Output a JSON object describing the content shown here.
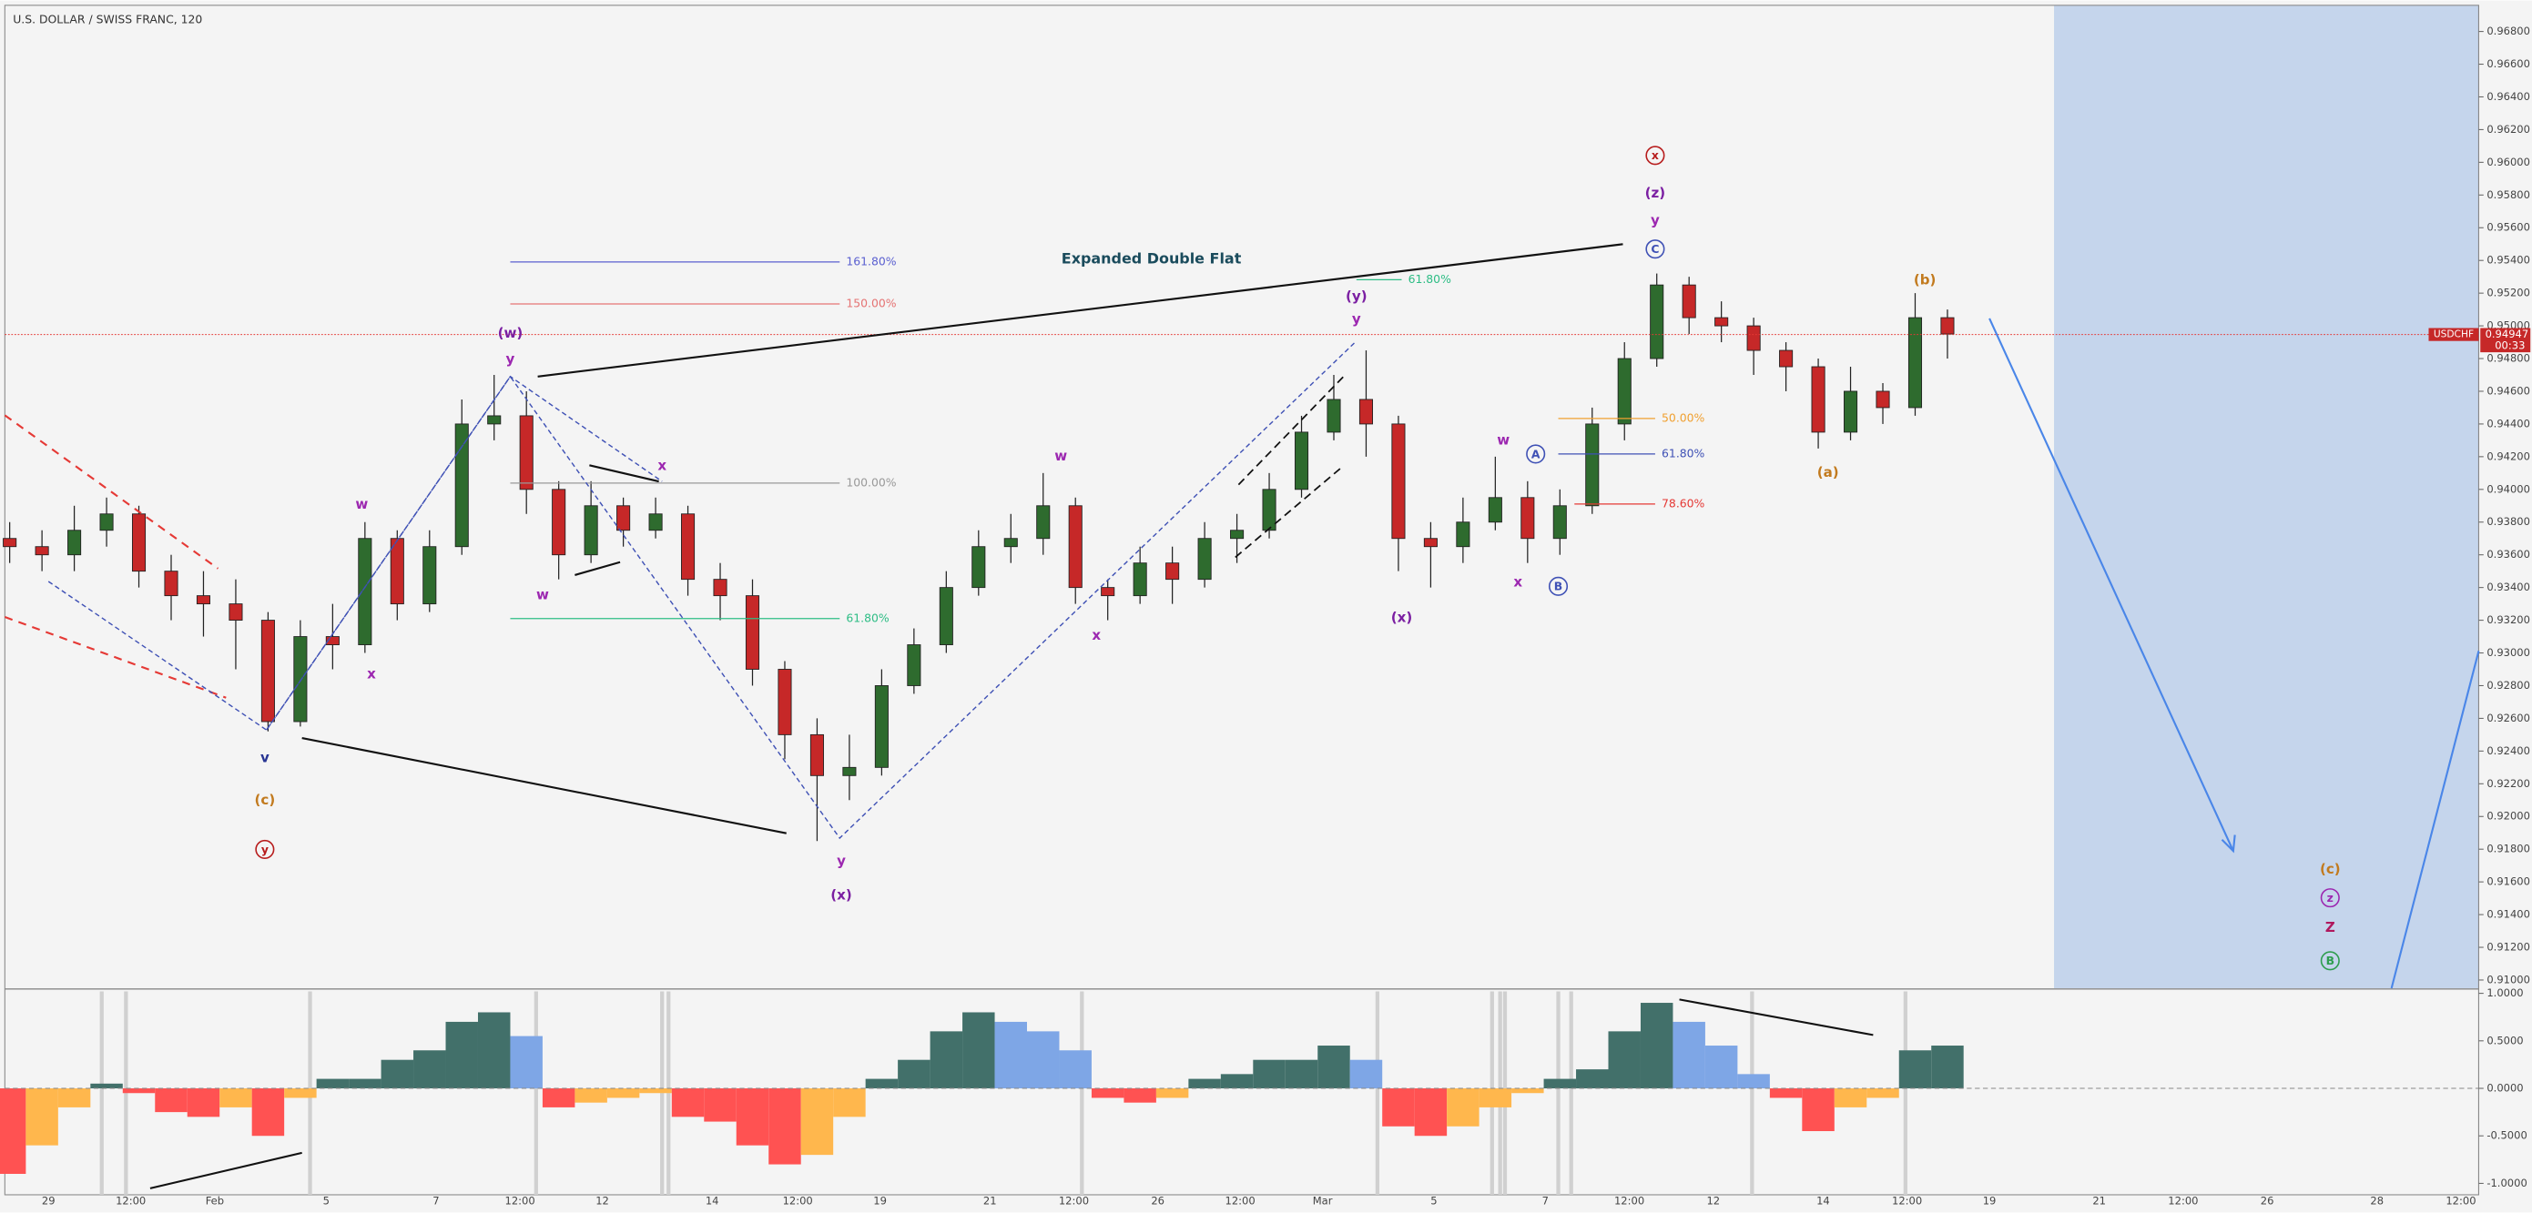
{
  "chart_data": [
    {
      "type": "candlestick",
      "title": "U.S. DOLLAR / SWISS FRANC, 120",
      "symbol": "USDCHF",
      "last_price": {
        "value": 0.94947,
        "label": "0.94947"
      },
      "countdown": "00:33",
      "up_color": "#2e6b2e",
      "down_color": "#c62828",
      "open": [
        0.937,
        0.9365,
        0.936,
        0.9375,
        0.9385,
        0.935,
        0.9335,
        0.933,
        0.932,
        0.9258,
        0.931,
        0.9305,
        0.937,
        0.933,
        0.9365,
        0.944,
        0.9445,
        0.94,
        0.936,
        0.939,
        0.9375,
        0.9385,
        0.9345,
        0.9335,
        0.929,
        0.925,
        0.9225,
        0.923,
        0.928,
        0.9305,
        0.934,
        0.9365,
        0.937,
        0.939,
        0.934,
        0.9335,
        0.9355,
        0.9345,
        0.937,
        0.9375,
        0.94,
        0.9435,
        0.9455,
        0.944,
        0.937,
        0.9365,
        0.938,
        0.9395,
        0.937,
        0.939,
        0.944,
        0.948,
        0.9525,
        0.9505,
        0.95,
        0.9485,
        0.9475,
        0.9435,
        0.946,
        0.945,
        0.9505
      ],
      "high": [
        0.938,
        0.9375,
        0.939,
        0.9395,
        0.939,
        0.936,
        0.935,
        0.9345,
        0.9325,
        0.932,
        0.933,
        0.938,
        0.9375,
        0.9375,
        0.9455,
        0.947,
        0.946,
        0.9405,
        0.9405,
        0.9395,
        0.9395,
        0.939,
        0.9355,
        0.9345,
        0.9295,
        0.926,
        0.925,
        0.929,
        0.9315,
        0.935,
        0.9375,
        0.9385,
        0.941,
        0.9395,
        0.9345,
        0.9365,
        0.9365,
        0.938,
        0.9385,
        0.941,
        0.9445,
        0.947,
        0.9485,
        0.9445,
        0.938,
        0.9395,
        0.942,
        0.9405,
        0.94,
        0.945,
        0.949,
        0.9532,
        0.953,
        0.9515,
        0.9505,
        0.949,
        0.948,
        0.9475,
        0.9465,
        0.952,
        0.951
      ],
      "low": [
        0.9355,
        0.935,
        0.935,
        0.9365,
        0.934,
        0.932,
        0.931,
        0.929,
        0.9252,
        0.9255,
        0.929,
        0.93,
        0.932,
        0.9325,
        0.936,
        0.943,
        0.9385,
        0.9345,
        0.9355,
        0.9365,
        0.937,
        0.9335,
        0.932,
        0.928,
        0.9235,
        0.9185,
        0.921,
        0.9225,
        0.9275,
        0.93,
        0.9335,
        0.9355,
        0.936,
        0.933,
        0.932,
        0.933,
        0.933,
        0.934,
        0.9355,
        0.937,
        0.9395,
        0.943,
        0.942,
        0.935,
        0.934,
        0.9355,
        0.9375,
        0.9355,
        0.936,
        0.9385,
        0.943,
        0.9475,
        0.9495,
        0.949,
        0.947,
        0.946,
        0.9425,
        0.943,
        0.944,
        0.9445,
        0.948
      ],
      "close": [
        0.9365,
        0.936,
        0.9375,
        0.9385,
        0.935,
        0.9335,
        0.933,
        0.932,
        0.9258,
        0.931,
        0.9305,
        0.937,
        0.933,
        0.9365,
        0.944,
        0.9445,
        0.94,
        0.936,
        0.939,
        0.9375,
        0.9385,
        0.9345,
        0.9335,
        0.929,
        0.925,
        0.9225,
        0.923,
        0.928,
        0.9305,
        0.934,
        0.9365,
        0.937,
        0.939,
        0.934,
        0.9335,
        0.9355,
        0.9345,
        0.937,
        0.9375,
        0.94,
        0.9435,
        0.9455,
        0.944,
        0.937,
        0.9365,
        0.938,
        0.9395,
        0.937,
        0.939,
        0.944,
        0.948,
        0.9525,
        0.9505,
        0.95,
        0.9485,
        0.9475,
        0.9435,
        0.946,
        0.945,
        0.9505,
        0.9495
      ],
      "ylim": [
        0.9095,
        0.9696
      ],
      "yticks": [
        {
          "value": 0.968,
          "label": "0.96800"
        },
        {
          "value": 0.966,
          "label": "0.96600"
        },
        {
          "value": 0.964,
          "label": "0.96400"
        },
        {
          "value": 0.962,
          "label": "0.96200"
        },
        {
          "value": 0.96,
          "label": "0.96000"
        },
        {
          "value": 0.958,
          "label": "0.95800"
        },
        {
          "value": 0.956,
          "label": "0.95600"
        },
        {
          "value": 0.954,
          "label": "0.95400"
        },
        {
          "value": 0.952,
          "label": "0.95200"
        },
        {
          "value": 0.95,
          "label": "0.95000"
        },
        {
          "value": 0.948,
          "label": "0.94800"
        },
        {
          "value": 0.946,
          "label": "0.94600"
        },
        {
          "value": 0.944,
          "label": "0.94400"
        },
        {
          "value": 0.942,
          "label": "0.94200"
        },
        {
          "value": 0.94,
          "label": "0.94000"
        },
        {
          "value": 0.938,
          "label": "0.93800"
        },
        {
          "value": 0.936,
          "label": "0.93600"
        },
        {
          "value": 0.934,
          "label": "0.93400"
        },
        {
          "value": 0.932,
          "label": "0.93200"
        },
        {
          "value": 0.93,
          "label": "0.93000"
        },
        {
          "value": 0.928,
          "label": "0.92800"
        },
        {
          "value": 0.926,
          "label": "0.92600"
        },
        {
          "value": 0.924,
          "label": "0.92400"
        },
        {
          "value": 0.922,
          "label": "0.92200"
        },
        {
          "value": 0.92,
          "label": "0.92000"
        },
        {
          "value": 0.918,
          "label": "0.91800"
        },
        {
          "value": 0.916,
          "label": "0.91600"
        },
        {
          "value": 0.914,
          "label": "0.91400"
        },
        {
          "value": 0.912,
          "label": "0.91200"
        },
        {
          "value": 0.91,
          "label": "0.91000"
        }
      ],
      "x_labels": [
        "29",
        "12:00",
        "Feb",
        "5",
        "7",
        "12:00",
        "12",
        "14",
        "12:00",
        "19",
        "21",
        "12:00",
        "26",
        "12:00",
        "Mar",
        "5",
        "7",
        "12:00",
        "12",
        "14",
        "12:00",
        "19",
        "21",
        "12:00",
        "26",
        "28",
        "12:00"
      ],
      "annotations": [
        {
          "text": "(w)",
          "color": "#7b1fa2"
        },
        {
          "text": "y",
          "color": "#9c27b0"
        },
        {
          "text": "w",
          "color": "#9c27b0"
        },
        {
          "text": "x",
          "color": "#9c27b0"
        },
        {
          "text": "v",
          "color": "#283593"
        },
        {
          "text": "(c)",
          "color": "#c27a1e"
        },
        {
          "text": "y",
          "color": "#b71c1c",
          "circled": true
        },
        {
          "text": "w",
          "color": "#9c27b0"
        },
        {
          "text": "x",
          "color": "#9c27b0"
        },
        {
          "text": "y",
          "color": "#9c27b0"
        },
        {
          "text": "(x)",
          "color": "#7b1fa2"
        },
        {
          "text": "x",
          "color": "#9c27b0"
        },
        {
          "text": "w",
          "color": "#9c27b0"
        },
        {
          "text": "(y)",
          "color": "#7b1fa2"
        },
        {
          "text": "y",
          "color": "#9c27b0"
        },
        {
          "text": "(x)",
          "color": "#7b1fa2"
        },
        {
          "text": "w",
          "color": "#9c27b0"
        },
        {
          "text": "x",
          "color": "#9c27b0"
        },
        {
          "text": "A",
          "color": "#3f51b5",
          "circled": true
        },
        {
          "text": "B",
          "color": "#3f51b5",
          "circled": true
        },
        {
          "text": "x",
          "color": "#b71c1c",
          "circled": true
        },
        {
          "text": "(z)",
          "color": "#7b1fa2"
        },
        {
          "text": "y",
          "color": "#9c27b0"
        },
        {
          "text": "C",
          "color": "#3f51b5",
          "circled": true
        },
        {
          "text": "(b)",
          "color": "#c27a1e"
        },
        {
          "text": "(a)",
          "color": "#c27a1e"
        },
        {
          "text": "(c)",
          "color": "#c27a1e"
        },
        {
          "text": "z",
          "color": "#9c27b0",
          "circled": true
        },
        {
          "text": "Z",
          "color": "#b0185e"
        },
        {
          "text": "B",
          "color": "#2e9e4e",
          "circled": true
        },
        {
          "text": "Expanded Double Flat",
          "color": "#1a4b5c"
        }
      ],
      "fib_levels": [
        {
          "label": "161.80%",
          "color": "#5a5fd0"
        },
        {
          "label": "150.00%",
          "color": "#e57373"
        },
        {
          "label": "100.00%",
          "color": "#999999"
        },
        {
          "label": "61.80%",
          "color": "#2ebd85"
        },
        {
          "label": "61.80%",
          "color": "#2ebd85"
        },
        {
          "label": "50.00%",
          "color": "#f0a030"
        },
        {
          "label": "61.80%",
          "color": "#3f51b5"
        },
        {
          "label": "78.60%",
          "color": "#e53935"
        }
      ]
    },
    {
      "type": "oscillator",
      "values": [
        -0.9,
        -0.6,
        -0.2,
        0.05,
        -0.05,
        -0.25,
        -0.3,
        -0.2,
        -0.5,
        -0.1,
        0.1,
        0.1,
        0.3,
        0.4,
        0.7,
        0.8,
        0.55,
        -0.2,
        -0.15,
        -0.1,
        -0.05,
        -0.3,
        -0.35,
        -0.6,
        -0.8,
        -0.7,
        -0.3,
        0.1,
        0.3,
        0.6,
        0.8,
        0.7,
        0.6,
        0.4,
        -0.1,
        -0.15,
        -0.1,
        0.1,
        0.15,
        0.3,
        0.3,
        0.45,
        0.3,
        -0.4,
        -0.5,
        -0.4,
        -0.2,
        -0.05,
        0.1,
        0.2,
        0.6,
        0.9,
        0.7,
        0.45,
        0.15,
        -0.1,
        -0.45,
        -0.2,
        -0.1,
        0.4,
        0.45
      ],
      "colors": {
        "positive_rising": "#42706a",
        "positive_falling": "#7ea6e6",
        "negative_falling": "#ff5252",
        "negative_rising": "#ffb74d"
      },
      "ylim": [
        -1.12,
        1.02
      ],
      "yticks": [
        {
          "value": 1,
          "label": "1.0000"
        },
        {
          "value": 0.5,
          "label": "0.5000"
        },
        {
          "value": 0,
          "label": "0.0000"
        },
        {
          "value": -0.5,
          "label": "-0.5000"
        },
        {
          "value": -1,
          "label": "-1.0000"
        }
      ]
    }
  ]
}
